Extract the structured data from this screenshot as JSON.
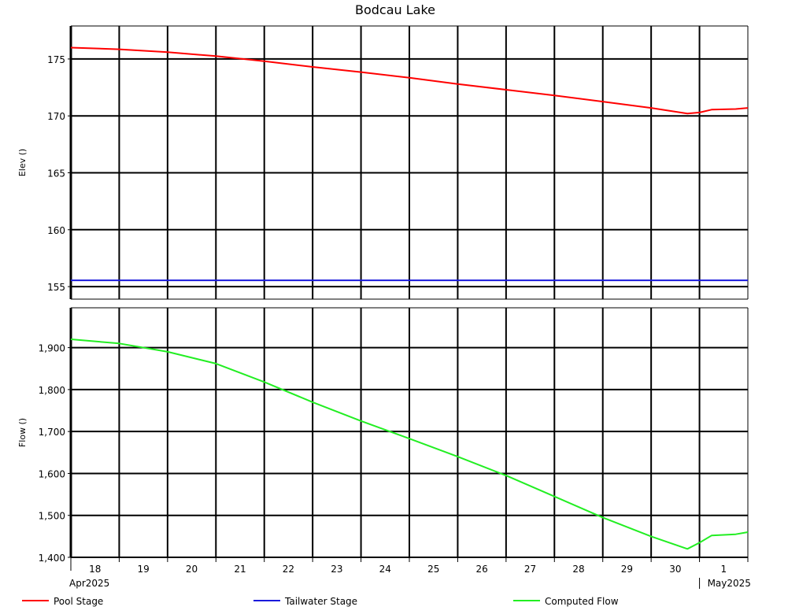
{
  "chart_data": [
    {
      "type": "line",
      "panel": "top",
      "title": "Bodcau Lake",
      "ylabel": "Elev ()",
      "ylim": [
        153.9,
        177.9
      ],
      "yticks": [
        155,
        160,
        165,
        170,
        175
      ],
      "ytick_labels": [
        "155",
        "160",
        "165",
        "170",
        "175"
      ],
      "grid": true,
      "series": [
        {
          "name": "Pool Stage",
          "color": "#ff0000",
          "x": [
            "2025-04-18 00:00",
            "2025-04-19 00:00",
            "2025-04-20 00:00",
            "2025-04-21 00:00",
            "2025-04-22 00:00",
            "2025-04-23 00:00",
            "2025-04-24 00:00",
            "2025-04-25 00:00",
            "2025-04-26 00:00",
            "2025-04-27 00:00",
            "2025-04-28 00:00",
            "2025-04-29 00:00",
            "2025-04-30 00:00",
            "2025-04-30 18:00",
            "2025-05-01 00:00",
            "2025-05-01 06:00",
            "2025-05-01 18:00",
            "2025-05-02 00:00"
          ],
          "values": [
            176.0,
            175.85,
            175.6,
            175.25,
            174.8,
            174.3,
            173.85,
            173.35,
            172.8,
            172.3,
            171.8,
            171.25,
            170.7,
            170.2,
            170.3,
            170.55,
            170.6,
            170.7
          ]
        },
        {
          "name": "Tailwater Stage",
          "color": "#1a1adc",
          "x": [
            "2025-04-18 00:00",
            "2025-05-02 00:00"
          ],
          "values": [
            155.55,
            155.55
          ]
        }
      ]
    },
    {
      "type": "line",
      "panel": "bottom",
      "ylabel": "Flow ()",
      "ylim": [
        1400,
        1995
      ],
      "yticks": [
        1400,
        1500,
        1600,
        1700,
        1800,
        1900
      ],
      "ytick_labels": [
        "1,400",
        "1,500",
        "1,600",
        "1,700",
        "1,800",
        "1,900"
      ],
      "x_tick_labels": [
        "18",
        "19",
        "20",
        "21",
        "22",
        "23",
        "24",
        "25",
        "26",
        "27",
        "28",
        "29",
        "30",
        "1"
      ],
      "x_period_labels": [
        "Apr2025",
        "May2025"
      ],
      "grid": true,
      "series": [
        {
          "name": "Computed Flow",
          "color": "#22ee22",
          "x": [
            "2025-04-18 00:00",
            "2025-04-19 00:00",
            "2025-04-20 00:00",
            "2025-04-21 00:00",
            "2025-04-22 00:00",
            "2025-04-23 00:00",
            "2025-04-24 00:00",
            "2025-04-25 00:00",
            "2025-04-26 00:00",
            "2025-04-27 00:00",
            "2025-04-28 00:00",
            "2025-04-29 00:00",
            "2025-04-30 00:00",
            "2025-04-30 18:00",
            "2025-05-01 00:00",
            "2025-05-01 06:00",
            "2025-05-01 18:00",
            "2025-05-02 00:00"
          ],
          "values": [
            1920,
            1910,
            1890,
            1862,
            1818,
            1770,
            1725,
            1683,
            1640,
            1595,
            1545,
            1495,
            1450,
            1420,
            1435,
            1452,
            1455,
            1460
          ]
        }
      ]
    }
  ],
  "legend": [
    {
      "label": "Pool Stage",
      "color": "#ff0000"
    },
    {
      "label": "Tailwater Stage",
      "color": "#1a1adc"
    },
    {
      "label": "Computed Flow",
      "color": "#22ee22"
    }
  ]
}
